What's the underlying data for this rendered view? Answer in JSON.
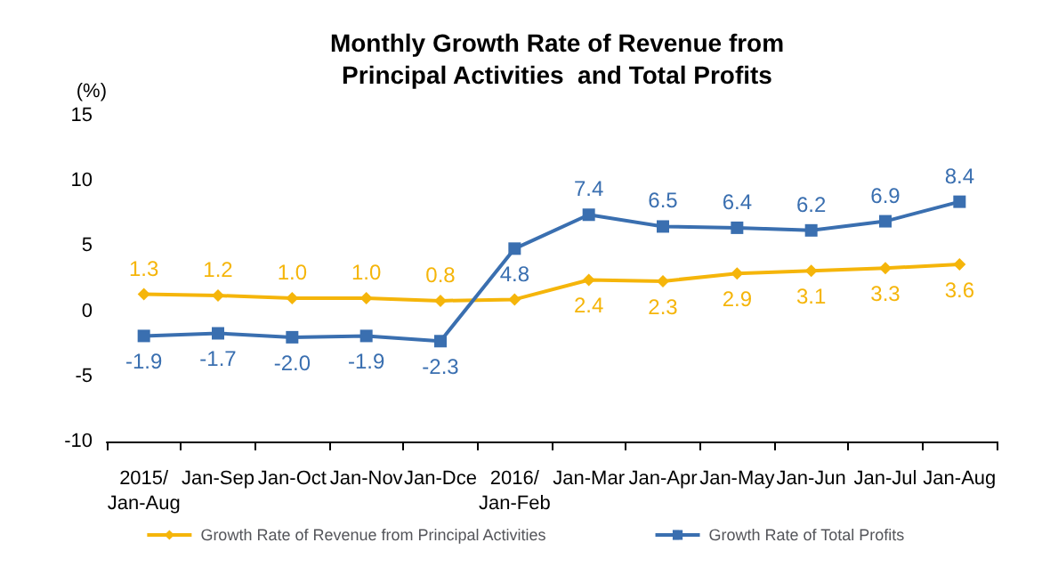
{
  "chart_data": {
    "type": "line",
    "title": "Monthly Growth Rate of Revenue from\nPrincipal Activities  and Total Profits",
    "ylabel": "(%)",
    "categories": [
      "2015/Jan-Aug",
      "Jan-Sep",
      "Jan-Oct",
      "Jan-Nov",
      "Jan-Dce",
      "2016/Jan-Feb",
      "Jan-Mar",
      "Jan-Apr",
      "Jan-May",
      "Jan-Jun",
      "Jan-Jul",
      "Jan-Aug"
    ],
    "series": [
      {
        "name": "Growth Rate of Revenue from Principal Activities",
        "color": "#f5b50a",
        "marker": "diamond",
        "values": [
          1.3,
          1.2,
          1.0,
          1.0,
          0.8,
          0.9,
          2.4,
          2.3,
          2.9,
          3.1,
          3.3,
          3.6
        ],
        "value_labels": [
          "1.3",
          "1.2",
          "1.0",
          "1.0",
          "0.8",
          null,
          "2.4",
          "2.3",
          "2.9",
          "3.1",
          "3.3",
          "3.6"
        ]
      },
      {
        "name": "Growth Rate of Total Profits",
        "color": "#3a6fb0",
        "marker": "square",
        "values": [
          -1.9,
          -1.7,
          -2.0,
          -1.9,
          -2.3,
          4.8,
          7.4,
          6.5,
          6.4,
          6.2,
          6.9,
          8.4
        ],
        "value_labels": [
          "-1.9",
          "-1.7",
          "-2.0",
          "-1.9",
          "-2.3",
          "4.8",
          "7.4",
          "6.5",
          "6.4",
          "6.2",
          "6.9",
          "8.4"
        ]
      }
    ],
    "ylim": [
      -10,
      15
    ],
    "yticks": [
      -10,
      -5,
      0,
      5,
      10,
      15
    ],
    "grid": false,
    "legend": "bottom"
  }
}
